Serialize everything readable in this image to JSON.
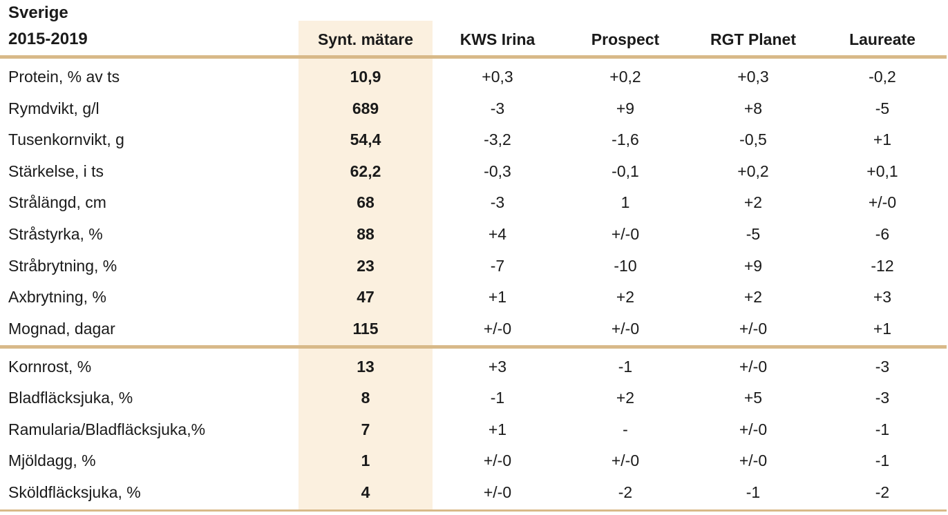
{
  "header": {
    "region": "Sverige",
    "period": "2015-2019",
    "columns": [
      "Synt. mätare",
      "KWS Irina",
      "Prospect",
      "RGT Planet",
      "Laureate"
    ]
  },
  "colors": {
    "accent_rule": "#d8b989",
    "highlight": "#fbf0df"
  },
  "sections": [
    {
      "rows": [
        {
          "label": "Protein, % av ts",
          "values": [
            "10,9",
            "+0,3",
            "+0,2",
            "+0,3",
            "-0,2"
          ]
        },
        {
          "label": "Rymdvikt, g/l",
          "values": [
            "689",
            "-3",
            "+9",
            "+8",
            "-5"
          ]
        },
        {
          "label": "Tusenkornvikt, g",
          "values": [
            "54,4",
            "-3,2",
            "-1,6",
            "-0,5",
            "+1"
          ]
        },
        {
          "label": "Stärkelse, i ts",
          "values": [
            "62,2",
            "-0,3",
            "-0,1",
            "+0,2",
            "+0,1"
          ]
        },
        {
          "label": "Strålängd, cm",
          "values": [
            "68",
            "-3",
            "1",
            "+2",
            "+/-0"
          ]
        },
        {
          "label": "Stråstyrka, %",
          "values": [
            "88",
            "+4",
            "+/-0",
            "-5",
            "-6"
          ]
        },
        {
          "label": "Stråbrytning, %",
          "values": [
            "23",
            "-7",
            "-10",
            "+9",
            "-12"
          ]
        },
        {
          "label": "Axbrytning, %",
          "values": [
            "47",
            "+1",
            "+2",
            "+2",
            "+3"
          ]
        },
        {
          "label": "Mognad, dagar",
          "values": [
            "115",
            "+/-0",
            "+/-0",
            "+/-0",
            "+1"
          ]
        }
      ]
    },
    {
      "rows": [
        {
          "label": "Kornrost, %",
          "values": [
            "13",
            "+3",
            "-1",
            "+/-0",
            "-3"
          ]
        },
        {
          "label": "Bladfläcksjuka, %",
          "values": [
            "8",
            "-1",
            "+2",
            "+5",
            "-3"
          ]
        },
        {
          "label": "Ramularia/Bladfläcksjuka,%",
          "values": [
            "7",
            "+1",
            "-",
            "+/-0",
            "-1"
          ]
        },
        {
          "label": "Mjöldagg, %",
          "values": [
            "1",
            "+/-0",
            "+/-0",
            "+/-0",
            "-1"
          ]
        },
        {
          "label": "Sköldfläcksjuka, %",
          "values": [
            "4",
            "+/-0",
            "-2",
            "-1",
            "-2"
          ]
        }
      ]
    }
  ]
}
